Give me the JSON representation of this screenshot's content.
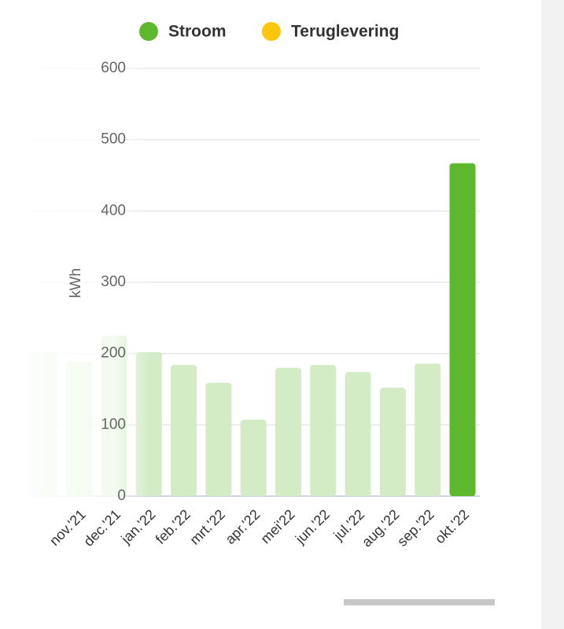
{
  "chart_data": {
    "type": "bar",
    "y_label": "kWh",
    "categories": [
      null,
      "nov.'21",
      "dec.'21",
      "jan.'22",
      "feb.'22",
      "mrt.'22",
      "apr.'22",
      "mei'22",
      "jun.'22",
      "jul.'22",
      "aug.'22",
      "sep.'22",
      "okt.'22"
    ],
    "series": [
      {
        "name": "Stroom",
        "color": "#5db82e",
        "values": [
          203,
          189,
          225,
          202,
          184,
          159,
          107,
          180,
          184,
          174,
          152,
          186,
          467
        ]
      },
      {
        "name": "Teruglevering",
        "color": "#fbc70d",
        "values": [
          null,
          null,
          null,
          null,
          null,
          null,
          null,
          null,
          null,
          null,
          null,
          null,
          null
        ]
      }
    ],
    "bar_colors": [
      "#d3ecc6",
      "#d3ecc6",
      "#d3ecc6",
      "#d3ecc6",
      "#d3ecc6",
      "#d3ecc6",
      "#d3ecc6",
      "#d3ecc6",
      "#d3ecc6",
      "#d3ecc6",
      "#d3ecc6",
      "#d3ecc6",
      "#5db82e"
    ],
    "ylim": [
      0,
      600
    ],
    "yticks": [
      0,
      100,
      200,
      300,
      400,
      500,
      600
    ],
    "grid": true
  }
}
